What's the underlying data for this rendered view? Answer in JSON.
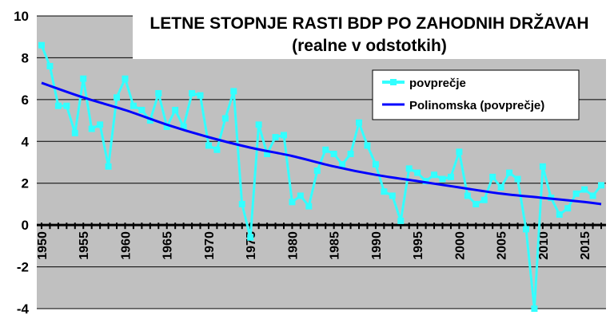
{
  "chart_data": {
    "type": "line",
    "title_line1": "LETNE STOPNJE RASTI BDP PO ZAHODNIH DRŽAVAH",
    "title_line2": "(realne v odstotkih)",
    "xlim": [
      1950,
      2017
    ],
    "ylim": [
      -4,
      10
    ],
    "y_ticks": [
      -4,
      -2,
      0,
      2,
      4,
      6,
      8,
      10
    ],
    "x_tick_labels": [
      1950,
      1955,
      1960,
      1965,
      1970,
      1975,
      1980,
      1985,
      1990,
      1995,
      2000,
      2005,
      2010,
      2015
    ],
    "grid": "horizontal",
    "legend_position": "upper-right",
    "series": [
      {
        "name": "povprečje",
        "color": "#33FFFF",
        "marker": "square",
        "x": [
          1950,
          1951,
          1952,
          1953,
          1954,
          1955,
          1956,
          1957,
          1958,
          1959,
          1960,
          1961,
          1962,
          1963,
          1964,
          1965,
          1966,
          1967,
          1968,
          1969,
          1970,
          1971,
          1972,
          1973,
          1974,
          1975,
          1976,
          1977,
          1978,
          1979,
          1980,
          1981,
          1982,
          1983,
          1984,
          1985,
          1986,
          1987,
          1988,
          1989,
          1990,
          1991,
          1992,
          1993,
          1994,
          1995,
          1996,
          1997,
          1998,
          1999,
          2000,
          2001,
          2002,
          2003,
          2004,
          2005,
          2006,
          2007,
          2008,
          2009,
          2010,
          2011,
          2012,
          2013,
          2014,
          2015,
          2016,
          2017
        ],
        "values": [
          8.6,
          7.6,
          5.7,
          5.7,
          4.4,
          7.0,
          4.6,
          4.8,
          2.8,
          6.1,
          7.0,
          5.7,
          5.5,
          5.0,
          6.3,
          4.7,
          5.5,
          4.7,
          6.3,
          6.2,
          3.8,
          3.6,
          5.1,
          6.4,
          1.0,
          -0.6,
          4.8,
          3.4,
          4.2,
          4.3,
          1.1,
          1.4,
          0.9,
          2.6,
          3.6,
          3.4,
          2.9,
          3.4,
          4.9,
          3.8,
          2.9,
          1.6,
          1.4,
          0.2,
          2.7,
          2.5,
          2.1,
          2.4,
          2.2,
          2.3,
          3.5,
          1.4,
          1.0,
          1.2,
          2.3,
          1.8,
          2.5,
          2.2,
          -0.2,
          -4.0,
          2.8,
          1.3,
          0.5,
          0.8,
          1.5,
          1.7,
          1.4,
          1.9
        ]
      },
      {
        "name": "Polinomska (povprečje)",
        "color": "#0000FF",
        "x": [
          1950,
          1955,
          1960,
          1965,
          1970,
          1975,
          1980,
          1985,
          1990,
          1995,
          2000,
          2005,
          2010,
          2015,
          2017
        ],
        "values": [
          6.8,
          6.1,
          5.5,
          4.8,
          4.2,
          3.7,
          3.3,
          2.8,
          2.4,
          2.1,
          1.8,
          1.5,
          1.3,
          1.1,
          1.0
        ]
      }
    ]
  }
}
